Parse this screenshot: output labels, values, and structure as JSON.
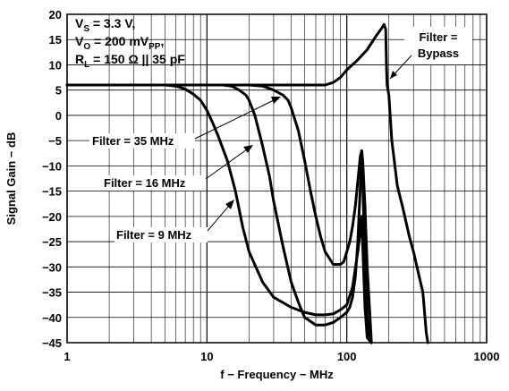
{
  "chart_data": {
    "type": "line",
    "title": "",
    "xlabel": "f − Frequency − MHz",
    "ylabel": "Signal Gain − dB",
    "xscale": "log",
    "xlim": [
      1,
      1000
    ],
    "ylim": [
      -45,
      20
    ],
    "grid": true,
    "xticks": [
      "1",
      "10",
      "100",
      "1000"
    ],
    "yticks": [
      "20",
      "15",
      "10",
      "5",
      "0",
      "−5",
      "−10",
      "−15",
      "−20",
      "−25",
      "−30",
      "−35",
      "−40",
      "−45"
    ],
    "conditions": [
      {
        "main": "V",
        "sub": "S",
        "rest": " = 3.3 V,"
      },
      {
        "main": "V",
        "sub": "O",
        "rest": " = 200 mV",
        "sub2": "PP",
        "rest2": ","
      },
      {
        "main": "R",
        "sub": "L",
        "rest": " = 150 Ω || 35 pF"
      }
    ],
    "series": [
      {
        "label": "Filter = 9 MHz",
        "x": [
          1,
          3,
          5,
          6,
          7,
          8,
          9,
          10,
          11,
          12,
          14,
          16,
          18,
          20,
          25,
          30,
          40,
          50,
          60,
          70,
          80,
          90,
          100,
          110,
          120,
          125,
          128,
          130,
          135,
          140,
          150
        ],
        "y": [
          6,
          6,
          6,
          5.8,
          5.2,
          4.2,
          3,
          1,
          -1.5,
          -4,
          -9,
          -15,
          -22,
          -27,
          -33,
          -36,
          -38,
          -39,
          -39.5,
          -39.5,
          -39.3,
          -38.5,
          -37.5,
          -34,
          -27,
          -23,
          -20,
          -26,
          -38,
          -44,
          -45
        ]
      },
      {
        "label": "Filter = 16 MHz",
        "x": [
          1,
          5,
          10,
          13,
          15,
          17,
          19,
          20,
          22,
          25,
          28,
          30,
          35,
          40,
          45,
          50,
          60,
          70,
          80,
          90,
          100,
          105,
          110,
          115,
          120,
          125,
          128,
          130,
          135,
          140,
          145,
          150
        ],
        "y": [
          6,
          6,
          6,
          6,
          5.8,
          5,
          4,
          3,
          0,
          -6,
          -12,
          -17,
          -26,
          -33,
          -37,
          -40,
          -41.5,
          -41.5,
          -41,
          -40,
          -39,
          -38,
          -36,
          -32,
          -25,
          -14,
          -9,
          -13,
          -30,
          -40,
          -44,
          -45
        ]
      },
      {
        "label": "Filter = 35 MHz",
        "x": [
          1,
          10,
          20,
          25,
          30,
          35,
          38,
          40,
          45,
          50,
          55,
          60,
          65,
          70,
          80,
          90,
          95,
          100,
          105,
          110,
          115,
          120,
          125,
          128,
          130,
          135,
          140,
          150
        ],
        "y": [
          6,
          6,
          6,
          5.8,
          5,
          4,
          3,
          1.5,
          -3,
          -9,
          -15,
          -20,
          -24,
          -27,
          -29.5,
          -29.5,
          -29,
          -27,
          -25,
          -22,
          -18,
          -13,
          -8,
          -7,
          -9,
          -18,
          -30,
          -45
        ]
      },
      {
        "label": "Filter = Bypass",
        "x": [
          1,
          10,
          50,
          70,
          80,
          90,
          100,
          120,
          140,
          160,
          175,
          185,
          190,
          192,
          194,
          200,
          210,
          230,
          250,
          280,
          300,
          330,
          350,
          360,
          370,
          380
        ],
        "y": [
          6,
          6,
          6,
          6,
          6.5,
          7.5,
          9,
          11,
          13,
          15.5,
          17,
          18,
          17,
          10,
          6,
          4,
          -5,
          -14,
          -18,
          -24,
          -27,
          -32,
          -35,
          -39,
          -43,
          -45
        ]
      }
    ],
    "annotations": [
      {
        "text": "Filter =",
        "text2": "Bypass",
        "target": "Filter = Bypass"
      },
      {
        "text": "Filter = 35 MHz",
        "target": "Filter = 35 MHz"
      },
      {
        "text": "Filter = 16 MHz",
        "target": "Filter = 16 MHz"
      },
      {
        "text": "Filter = 9 MHz",
        "target": "Filter = 9 MHz"
      }
    ]
  }
}
